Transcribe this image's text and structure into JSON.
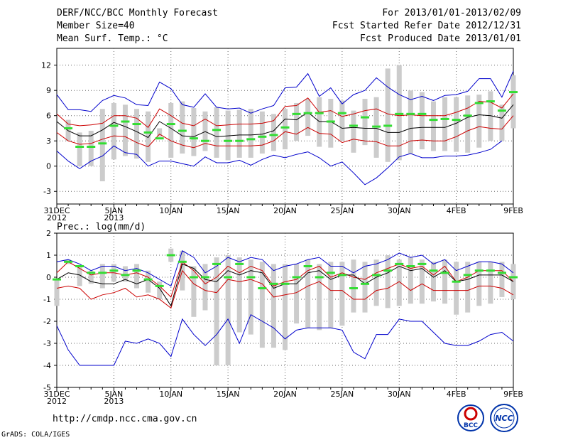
{
  "header": {
    "title": "DERF/NCC/BCC Monthly Forecast",
    "member": "Member Size=40",
    "variable": "Mean Surf. Temp.: °C",
    "period": "For 2013/01/01-2013/02/09",
    "start": "Fcst Started Refer Date 2012/12/31",
    "produced": "Fcst Produced Date 2013/01/01"
  },
  "footer": {
    "url": "http://cmdp.ncc.cma.gov.cn",
    "credit": "GrADS: COLA/IGES",
    "logo1": "BCC",
    "logo2": "NCC"
  },
  "colors": {
    "max_min": "#0000cc",
    "plus_minus_sd": "#cc0000",
    "ensemble_mean": "#000000",
    "median": "#33dd33",
    "range_bar": "#cccccc",
    "grid": "#666666"
  },
  "chart_data": [
    {
      "type": "line",
      "title": "Mean Surf. Temp.: °C",
      "x": [
        "12/31",
        "1/1",
        "1/2",
        "1/3",
        "1/4",
        "1/5",
        "1/6",
        "1/7",
        "1/8",
        "1/9",
        "1/10",
        "1/11",
        "1/12",
        "1/13",
        "1/14",
        "1/15",
        "1/16",
        "1/17",
        "1/18",
        "1/19",
        "1/20",
        "1/21",
        "1/22",
        "1/23",
        "1/24",
        "1/25",
        "1/26",
        "1/27",
        "1/28",
        "1/29",
        "1/30",
        "1/31",
        "2/1",
        "2/2",
        "2/3",
        "2/4",
        "2/5",
        "2/6",
        "2/7",
        "2/8",
        "2/9"
      ],
      "ylim": [
        -4.5,
        14
      ],
      "yticks": [
        -3,
        0,
        3,
        6,
        9,
        12
      ],
      "xticks": [
        {
          "day": 0,
          "label": "31DEC",
          "sub": "2012"
        },
        {
          "day": 5,
          "label": "5JAN",
          "sub": "2013"
        },
        {
          "day": 10,
          "label": "10JAN",
          "sub": ""
        },
        {
          "day": 15,
          "label": "15JAN",
          "sub": ""
        },
        {
          "day": 20,
          "label": "20JAN",
          "sub": ""
        },
        {
          "day": 25,
          "label": "25JAN",
          "sub": ""
        },
        {
          "day": 30,
          "label": "30JAN",
          "sub": ""
        },
        {
          "day": 35,
          "label": "4FEB",
          "sub": ""
        },
        {
          "day": 40,
          "label": "9FEB",
          "sub": ""
        }
      ],
      "range_start_day": 1,
      "series": [
        {
          "name": "max",
          "values": [
            8.5,
            6.7,
            6.7,
            6.5,
            7.8,
            8.4,
            8.1,
            7.3,
            7.2,
            10.0,
            9.2,
            7.3,
            7.0,
            8.6,
            7.0,
            6.8,
            6.9,
            6.3,
            6.8,
            7.2,
            9.3,
            9.4,
            11.0,
            8.3,
            9.3,
            7.4,
            8.5,
            9.0,
            10.5,
            9.4,
            8.5,
            7.9,
            8.3,
            7.8,
            8.4,
            8.5,
            8.9,
            10.4,
            10.4,
            8.2,
            11.3
          ]
        },
        {
          "name": "plus_sd",
          "values": [
            6.2,
            5.0,
            4.8,
            4.9,
            5.1,
            6.0,
            6.0,
            5.7,
            4.6,
            6.8,
            6.0,
            5.1,
            4.8,
            5.6,
            4.8,
            4.9,
            5.0,
            5.0,
            5.1,
            5.4,
            7.1,
            7.2,
            8.1,
            6.4,
            6.6,
            5.9,
            6.2,
            6.6,
            6.8,
            6.2,
            6.0,
            6.1,
            6.0,
            6.0,
            6.0,
            6.4,
            6.9,
            7.7,
            7.6,
            6.9,
            8.6
          ]
        },
        {
          "name": "mean",
          "values": [
            5.3,
            4.2,
            3.6,
            3.6,
            4.3,
            5.2,
            4.7,
            4.1,
            3.4,
            5.3,
            4.5,
            3.6,
            3.5,
            4.1,
            3.5,
            3.6,
            3.7,
            3.7,
            3.8,
            4.2,
            5.6,
            5.5,
            6.4,
            5.3,
            5.3,
            4.5,
            4.6,
            4.5,
            4.5,
            4.0,
            4.0,
            4.5,
            4.6,
            4.6,
            4.6,
            5.1,
            5.8,
            6.1,
            6.0,
            5.7,
            7.3
          ]
        },
        {
          "name": "minus_sd",
          "values": [
            4.0,
            3.0,
            2.6,
            2.7,
            3.2,
            3.6,
            3.5,
            2.8,
            2.3,
            3.8,
            3.0,
            2.5,
            2.2,
            2.7,
            2.4,
            2.4,
            2.4,
            2.4,
            2.5,
            3.0,
            4.1,
            3.8,
            4.6,
            3.9,
            3.8,
            2.8,
            3.2,
            3.0,
            2.9,
            2.4,
            2.4,
            3.0,
            3.1,
            3.0,
            3.0,
            3.5,
            4.2,
            4.7,
            4.5,
            4.4,
            6.0
          ]
        },
        {
          "name": "min",
          "values": [
            1.8,
            0.6,
            -0.3,
            0.6,
            1.2,
            2.4,
            1.6,
            1.4,
            0.0,
            0.6,
            0.6,
            0.3,
            0.0,
            1.1,
            0.4,
            0.4,
            0.7,
            0.1,
            0.8,
            1.3,
            1.0,
            1.4,
            1.7,
            1.0,
            0.0,
            0.5,
            -0.8,
            -2.2,
            -1.4,
            -0.2,
            1.1,
            1.5,
            1.0,
            1.0,
            1.2,
            1.2,
            1.3,
            1.6,
            2.0,
            3.0,
            null
          ]
        },
        {
          "name": "median",
          "values": [
            null,
            4.5,
            2.3,
            2.3,
            2.7,
            4.8,
            5.3,
            5.0,
            4.0,
            3.3,
            5.0,
            4.2,
            3.3,
            3.0,
            4.3,
            3.0,
            3.0,
            3.2,
            3.5,
            3.7,
            4.6,
            6.2,
            6.3,
            6.3,
            5.3,
            6.3,
            4.8,
            5.8,
            4.7,
            4.8,
            6.2,
            6.2,
            6.2,
            5.5,
            5.6,
            5.5,
            6.0,
            7.5,
            7.7,
            6.6,
            8.8
          ]
        },
        {
          "name": "bar_top",
          "values": [
            null,
            5.5,
            4.0,
            4.2,
            6.8,
            7.5,
            7.3,
            6.8,
            6.5,
            4.5,
            7.5,
            7.7,
            6.9,
            6.5,
            7.0,
            6.6,
            6.7,
            6.8,
            6.5,
            6.2,
            6.8,
            7.5,
            8.0,
            8.2,
            8.0,
            7.8,
            6.6,
            8.0,
            8.2,
            11.6,
            12.0,
            9.0,
            8.8,
            7.7,
            8.2,
            8.2,
            8.4,
            8.5,
            8.9,
            7.3,
            10.8
          ]
        },
        {
          "name": "bar_bottom",
          "values": [
            null,
            3.0,
            0.0,
            0.0,
            -1.8,
            0.8,
            1.2,
            0.9,
            0.5,
            3.5,
            1.0,
            1.5,
            1.2,
            1.8,
            1.0,
            0.7,
            1.0,
            1.0,
            1.5,
            1.8,
            2.0,
            3.0,
            3.6,
            2.3,
            2.2,
            3.0,
            1.6,
            2.5,
            1.0,
            0.5,
            0.7,
            1.5,
            2.0,
            1.8,
            1.8,
            1.7,
            1.6,
            2.2,
            3.0,
            3.0,
            4.5
          ]
        }
      ]
    },
    {
      "type": "line",
      "title": "Prec.: log(mm/d)",
      "x": [
        "12/31",
        "1/1",
        "1/2",
        "1/3",
        "1/4",
        "1/5",
        "1/6",
        "1/7",
        "1/8",
        "1/9",
        "1/10",
        "1/11",
        "1/12",
        "1/13",
        "1/14",
        "1/15",
        "1/16",
        "1/17",
        "1/18",
        "1/19",
        "1/20",
        "1/21",
        "1/22",
        "1/23",
        "1/24",
        "1/25",
        "1/26",
        "1/27",
        "1/28",
        "1/29",
        "1/30",
        "1/31",
        "2/1",
        "2/2",
        "2/3",
        "2/4",
        "2/5",
        "2/6",
        "2/7",
        "2/8",
        "2/9"
      ],
      "ylim": [
        -5,
        2
      ],
      "yticks": [
        -5,
        -4,
        -3,
        -2,
        -1,
        0,
        1,
        2
      ],
      "xticks": [
        {
          "day": 0,
          "label": "31DEC",
          "sub": "2012"
        },
        {
          "day": 5,
          "label": "5JAN",
          "sub": "2013"
        },
        {
          "day": 10,
          "label": "10JAN",
          "sub": ""
        },
        {
          "day": 15,
          "label": "15JAN",
          "sub": ""
        },
        {
          "day": 20,
          "label": "20JAN",
          "sub": ""
        },
        {
          "day": 25,
          "label": "25JAN",
          "sub": ""
        },
        {
          "day": 30,
          "label": "30JAN",
          "sub": ""
        },
        {
          "day": 35,
          "label": "4FEB",
          "sub": ""
        },
        {
          "day": 40,
          "label": "9FEB",
          "sub": ""
        }
      ],
      "range_start_day": 1,
      "series": [
        {
          "name": "max",
          "values": [
            0.7,
            0.8,
            0.6,
            0.3,
            0.5,
            0.5,
            0.3,
            0.4,
            0.2,
            -0.1,
            -0.4,
            1.2,
            0.9,
            0.2,
            0.5,
            0.9,
            0.7,
            0.9,
            0.8,
            0.3,
            0.5,
            0.6,
            0.8,
            0.9,
            0.5,
            0.5,
            0.2,
            0.5,
            0.6,
            0.8,
            1.1,
            0.9,
            1.0,
            0.6,
            0.8,
            0.3,
            0.5,
            0.7,
            0.7,
            0.6,
            0.2
          ]
        },
        {
          "name": "plus_sd",
          "values": [
            0.2,
            0.7,
            0.4,
            0.1,
            0.2,
            0.2,
            0.1,
            0.2,
            0.0,
            -0.4,
            -0.9,
            0.7,
            0.3,
            -0.3,
            0.0,
            0.5,
            0.2,
            0.5,
            0.3,
            -0.4,
            -0.2,
            -0.1,
            0.3,
            0.5,
            0.0,
            0.2,
            0.0,
            -0.1,
            0.2,
            0.4,
            0.6,
            0.4,
            0.5,
            0.1,
            0.5,
            -0.2,
            0.0,
            0.3,
            0.3,
            0.3,
            -0.2
          ]
        },
        {
          "name": "mean",
          "values": [
            -0.1,
            0.2,
            0.1,
            -0.2,
            -0.3,
            -0.3,
            -0.1,
            -0.3,
            -0.1,
            -0.5,
            -1.3,
            0.6,
            0.4,
            -0.1,
            -0.2,
            0.3,
            0.1,
            0.3,
            0.2,
            -0.5,
            -0.3,
            -0.3,
            0.2,
            0.3,
            -0.1,
            0.1,
            0.1,
            -0.3,
            0.0,
            0.2,
            0.5,
            0.3,
            0.4,
            0.0,
            0.3,
            -0.2,
            -0.1,
            0.1,
            0.1,
            0.1,
            -0.2
          ]
        },
        {
          "name": "minus_sd",
          "values": [
            -0.5,
            -0.4,
            -0.5,
            -1.0,
            -0.8,
            -0.7,
            -0.5,
            -0.9,
            -0.8,
            -1.0,
            -1.4,
            0.3,
            -0.3,
            -0.6,
            -0.7,
            -0.1,
            -0.2,
            -0.1,
            -0.3,
            -0.9,
            -0.8,
            -0.7,
            -0.4,
            -0.2,
            -0.6,
            -0.6,
            -1.0,
            -1.0,
            -0.6,
            -0.5,
            -0.2,
            -0.6,
            -0.3,
            -0.6,
            -0.6,
            -0.6,
            -0.6,
            -0.4,
            -0.4,
            -0.5,
            -0.8
          ]
        },
        {
          "name": "min",
          "values": [
            -2.2,
            -3.3,
            -4.0,
            -4.0,
            -4.0,
            -4.0,
            -2.9,
            -3.0,
            -2.8,
            -3.0,
            -3.6,
            -1.9,
            -2.6,
            -3.1,
            -2.6,
            -1.9,
            -3.0,
            -1.7,
            -2.0,
            -2.3,
            -2.8,
            -2.4,
            -2.3,
            -2.3,
            -2.3,
            -2.4,
            -3.4,
            -3.7,
            -2.6,
            -2.6,
            -1.9,
            -2.0,
            -2.0,
            -2.5,
            -3.0,
            -3.1,
            -3.1,
            -2.9,
            -2.6,
            -2.5,
            -2.9
          ]
        },
        {
          "name": "median",
          "values": [
            -0.1,
            0.7,
            0.5,
            0.2,
            0.2,
            0.3,
            0.1,
            0.3,
            -0.1,
            -0.4,
            1.0,
            0.7,
            0.0,
            0.0,
            0.6,
            0.0,
            0.6,
            0.0,
            -0.5,
            -0.3,
            -0.3,
            0.0,
            0.5,
            0.0,
            0.2,
            0.1,
            -0.5,
            -0.3,
            0.1,
            0.3,
            0.6,
            0.5,
            0.6,
            0.3,
            0.2,
            -0.2,
            0.1,
            0.3,
            0.3,
            0.2,
            0.0
          ]
        },
        {
          "name": "bar_top",
          "values": [
            -0.1,
            0.8,
            0.5,
            0.3,
            0.6,
            0.6,
            0.5,
            0.6,
            0.3,
            -0.2,
            1.3,
            1.2,
            0.5,
            0.6,
            0.9,
            1.0,
            0.9,
            0.8,
            0.7,
            0.6,
            0.6,
            0.6,
            0.8,
            0.6,
            0.7,
            0.7,
            0.8,
            0.7,
            0.8,
            1.0,
            0.8,
            0.9,
            0.8,
            0.7,
            0.8,
            0.7,
            0.7,
            0.7,
            0.7,
            0.7,
            0.6
          ]
        },
        {
          "name": "bar_bottom",
          "values": [
            -1.3,
            0.6,
            -0.4,
            -0.3,
            -0.5,
            -0.2,
            -0.2,
            -0.5,
            -0.7,
            -1.0,
            0.7,
            -0.6,
            -1.8,
            -1.5,
            -4.0,
            -4.0,
            -2.5,
            -2.6,
            -3.2,
            -3.2,
            -3.3,
            -2.1,
            -2.3,
            -2.4,
            -2.3,
            -2.2,
            -1.6,
            -1.6,
            -1.3,
            -1.4,
            -1.3,
            -1.2,
            -1.2,
            -1.1,
            -1.2,
            -1.7,
            -1.6,
            -1.3,
            -1.2,
            -0.9,
            -1.0
          ]
        }
      ]
    }
  ]
}
